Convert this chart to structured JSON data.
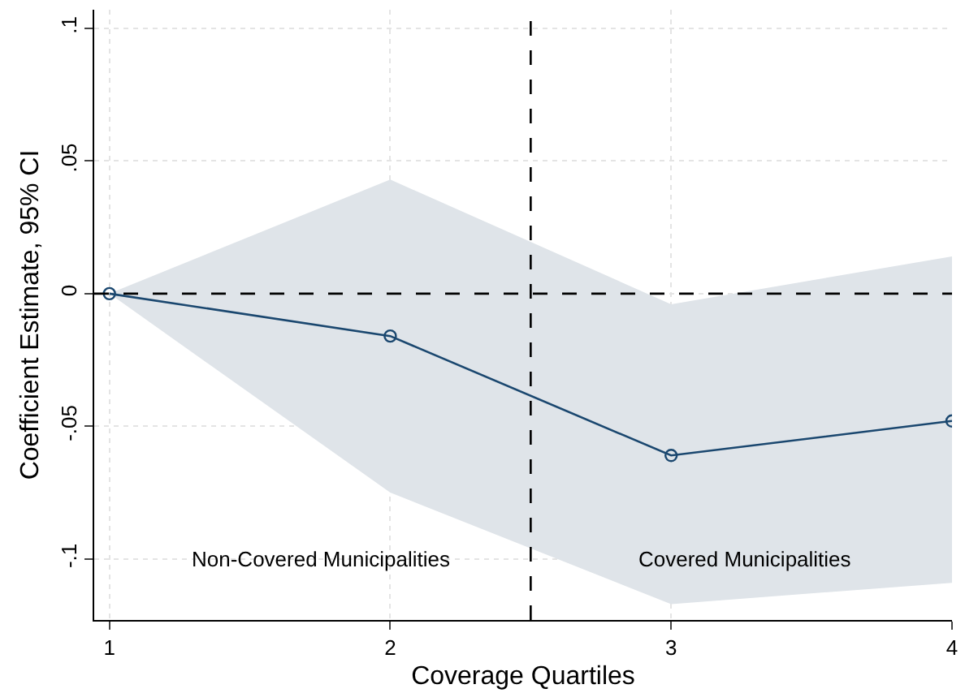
{
  "chart_data": {
    "type": "line",
    "xlabel": "Coverage Quartiles",
    "ylabel": "Coefficient Estimate, 95% CI",
    "x": [
      1,
      2,
      3,
      4
    ],
    "series": [
      {
        "color": "#1a476f",
        "values": [
          0,
          -0.016,
          -0.061,
          -0.048
        ],
        "lower": [
          0,
          -0.075,
          -0.117,
          -0.109
        ],
        "upper": [
          0,
          0.043,
          -0.004,
          0.014
        ]
      }
    ],
    "xlim": [
      0.946,
      4
    ],
    "xticks": [
      1,
      2,
      3,
      4
    ],
    "ylim": [
      -0.123,
      0.107
    ],
    "yticks": [
      {
        "value": -0.1,
        "label": "-.1"
      },
      {
        "value": -0.05,
        "label": "-.05"
      },
      {
        "value": 0,
        "label": "0"
      },
      {
        "value": 0.05,
        "label": ".05"
      },
      {
        "value": 0.1,
        "label": ".1"
      }
    ],
    "ref_lines": [
      {
        "axis": "y",
        "value": 0,
        "color": "#000000",
        "line_style": "dashed"
      },
      {
        "axis": "x",
        "value": 2.5,
        "color": "#000000",
        "line_style": "dashed"
      }
    ],
    "annotations": [
      "Non-Covered Municipalities",
      "Covered Municipalities"
    ],
    "grid": true,
    "marker": "circle",
    "line_style": "solid"
  }
}
